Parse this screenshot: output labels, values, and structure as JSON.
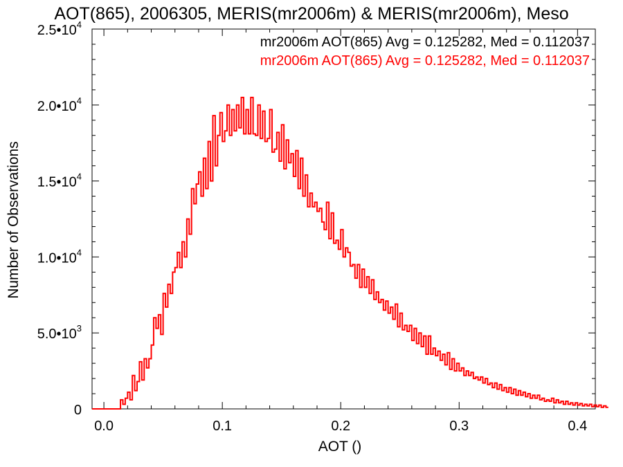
{
  "chart_data": {
    "type": "histogram-step",
    "title": "AOT(865), 2006305, MERIS(mr2006m) & MERIS(mr2006m), Meso",
    "xlabel": "AOT ()",
    "ylabel": "Number of Observations",
    "xlim": [
      -0.01,
      0.415
    ],
    "ylim": [
      0,
      25000
    ],
    "x_ticks": [
      {
        "value": 0.0,
        "label": "0.0"
      },
      {
        "value": 0.1,
        "label": "0.1"
      },
      {
        "value": 0.2,
        "label": "0.2"
      },
      {
        "value": 0.3,
        "label": "0.3"
      },
      {
        "value": 0.4,
        "label": "0.4"
      }
    ],
    "y_ticks": [
      {
        "value": 0,
        "mant": "0",
        "exp": ""
      },
      {
        "value": 5000,
        "mant": "5.0•10",
        "exp": "3"
      },
      {
        "value": 10000,
        "mant": "1.0•10",
        "exp": "4"
      },
      {
        "value": 15000,
        "mant": "1.5•10",
        "exp": "4"
      },
      {
        "value": 20000,
        "mant": "2.0•10",
        "exp": "4"
      },
      {
        "value": 25000,
        "mant": "2.5•10",
        "exp": "4"
      }
    ],
    "legend": [
      {
        "text": "mr2006m AOT(865) Avg = 0.125282, Med = 0.112037",
        "color": "#000000"
      },
      {
        "text": "mr2006m AOT(865) Avg = 0.125282, Med = 0.112037",
        "color": "#ff0000"
      }
    ],
    "series_color": "#ff0000",
    "bin_start": -0.01,
    "bin_width": 0.002,
    "counts": [
      0,
      0,
      0,
      0,
      0,
      0,
      0,
      0,
      0,
      0,
      0,
      0,
      600,
      300,
      700,
      1100,
      600,
      2200,
      1200,
      1800,
      3100,
      1900,
      3300,
      2700,
      3300,
      4200,
      6000,
      5300,
      6200,
      4900,
      7600,
      6700,
      8200,
      7600,
      9000,
      9300,
      10300,
      9300,
      11000,
      10000,
      12500,
      11500,
      14500,
      13500,
      14800,
      15600,
      14000,
      16500,
      14500,
      17600,
      15000,
      19300,
      16000,
      18000,
      19500,
      17600,
      18300,
      20000,
      18000,
      19700,
      18300,
      20000,
      18500,
      20500,
      18100,
      19700,
      18100,
      20500,
      18100,
      18000,
      20000,
      17800,
      19600,
      17600,
      17800,
      19700,
      16900,
      17100,
      18200,
      16300,
      18700,
      15800,
      17700,
      16200,
      16800,
      15300,
      17000,
      14500,
      16500,
      14000,
      15400,
      13300,
      14200,
      13300,
      13600,
      13000,
      13200,
      12300,
      11800,
      13600,
      11200,
      12900,
      10900,
      11100,
      10500,
      11800,
      10000,
      10600,
      10300,
      9400,
      9500,
      8600,
      9500,
      8000,
      9200,
      8000,
      8700,
      7600,
      8500,
      7200,
      7700,
      7000,
      7200,
      6500,
      7100,
      6300,
      6700,
      5900,
      6900,
      5400,
      6300,
      5200,
      5500,
      5100,
      5500,
      4500,
      5300,
      4300,
      5000,
      4100,
      4800,
      3600,
      4800,
      3600,
      4000,
      3500,
      3800,
      3200,
      3600,
      2900,
      3700,
      2600,
      3300,
      2500,
      3000,
      2500,
      2700,
      2200,
      2500,
      2200,
      2400,
      2000,
      2100,
      1900,
      2100,
      1700,
      2000,
      1600,
      1700,
      1400,
      1700,
      1300,
      1600,
      1200,
      1400,
      1100,
      1400,
      1000,
      1300,
      900,
      1200,
      900,
      1100,
      800,
      1000,
      700,
      900,
      700,
      900,
      600,
      700,
      500,
      600,
      500,
      700,
      400,
      600,
      400,
      500,
      300,
      500,
      300,
      400,
      250,
      400,
      250,
      350,
      200,
      300,
      200,
      300,
      150,
      250,
      150,
      250,
      100,
      200,
      100
    ]
  }
}
